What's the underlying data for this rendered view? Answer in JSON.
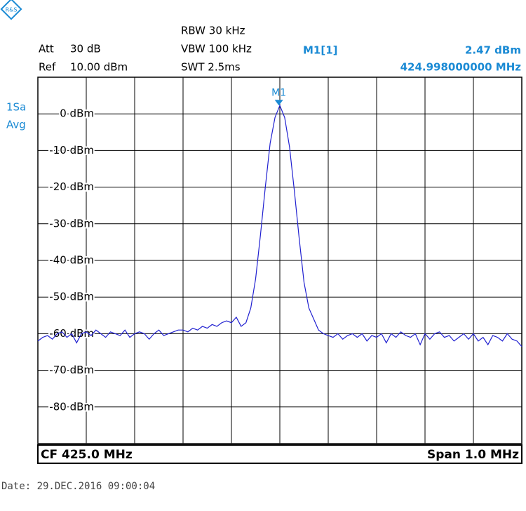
{
  "chart_data": {
    "type": "line",
    "settings": {
      "att_label": "Att",
      "att": "30 dB",
      "ref_label": "Ref",
      "ref": "10.00 dBm",
      "rbw": "RBW 30 kHz",
      "vbw": "VBW 100 kHz",
      "swt": "SWT 2.5ms",
      "trace_mode": [
        "1Sa",
        "Avg"
      ]
    },
    "center": "CF 425.0 MHz",
    "span": "Span 1.0 MHz",
    "date": "Date: 29.DEC.2016  09:00:04",
    "marker": {
      "name": "M1",
      "readout": "M1[1]",
      "x": 424.998,
      "value": 2.47,
      "value_label": "2.47 dBm",
      "x_label": "424.998000000 MHz",
      "color": "#1a8ad4"
    },
    "xlim": [
      424.5,
      425.5
    ],
    "ylim": [
      -90,
      10
    ],
    "yticks": [
      {
        "value": 0,
        "label": "0 dBm"
      },
      {
        "value": -10,
        "label": "-10 dBm"
      },
      {
        "value": -20,
        "label": "-20 dBm"
      },
      {
        "value": -30,
        "label": "-30 dBm"
      },
      {
        "value": -40,
        "label": "-40 dBm"
      },
      {
        "value": -50,
        "label": "-50 dBm"
      },
      {
        "value": -60,
        "label": "-60 dBm"
      },
      {
        "value": -70,
        "label": "-70 dBm"
      },
      {
        "value": -80,
        "label": "-80 dBm"
      }
    ],
    "grid": true,
    "x": [
      424.5,
      424.51,
      424.52,
      424.53,
      424.54,
      424.55,
      424.56,
      424.57,
      424.58,
      424.59,
      424.6,
      424.61,
      424.62,
      424.63,
      424.64,
      424.65,
      424.66,
      424.67,
      424.68,
      424.69,
      424.7,
      424.71,
      424.72,
      424.73,
      424.74,
      424.75,
      424.76,
      424.77,
      424.78,
      424.79,
      424.8,
      424.81,
      424.82,
      424.83,
      424.84,
      424.85,
      424.86,
      424.87,
      424.88,
      424.89,
      424.9,
      424.91,
      424.92,
      424.93,
      424.94,
      424.95,
      424.96,
      424.97,
      424.98,
      424.99,
      425.0,
      425.01,
      425.02,
      425.03,
      425.04,
      425.05,
      425.06,
      425.07,
      425.08,
      425.09,
      425.1,
      425.11,
      425.12,
      425.13,
      425.14,
      425.15,
      425.16,
      425.17,
      425.18,
      425.19,
      425.2,
      425.21,
      425.22,
      425.23,
      425.24,
      425.25,
      425.26,
      425.27,
      425.28,
      425.29,
      425.3,
      425.31,
      425.32,
      425.33,
      425.34,
      425.35,
      425.36,
      425.37,
      425.38,
      425.39,
      425.4,
      425.41,
      425.42,
      425.43,
      425.44,
      425.45,
      425.46,
      425.47,
      425.48,
      425.49,
      425.5
    ],
    "series": [
      {
        "color": "#2020d0",
        "values": [
          -62,
          -61,
          -60.5,
          -61.5,
          -60,
          -59.5,
          -61,
          -60,
          -62.5,
          -60,
          -59.5,
          -60.5,
          -59,
          -60,
          -61,
          -59.5,
          -60,
          -60.5,
          -59,
          -61,
          -60,
          -59.5,
          -60,
          -61.5,
          -60,
          -59,
          -60.5,
          -60,
          -59.5,
          -59,
          -59,
          -59.5,
          -58.5,
          -59,
          -58,
          -58.5,
          -57.5,
          -58,
          -57,
          -56.5,
          -57,
          -55.5,
          -58,
          -57,
          -53,
          -45,
          -33,
          -20,
          -8,
          -1,
          2.3,
          -1,
          -9,
          -21,
          -34,
          -46,
          -53,
          -56,
          -59,
          -60,
          -60.5,
          -61,
          -60,
          -61.5,
          -60.5,
          -60,
          -61,
          -60,
          -62,
          -60.5,
          -61,
          -60,
          -62.5,
          -60,
          -61,
          -59.5,
          -60.5,
          -61,
          -60,
          -63,
          -60,
          -61.5,
          -60,
          -59.5,
          -61,
          -60.5,
          -62,
          -61,
          -60,
          -61.5,
          -60,
          -62,
          -61,
          -63,
          -60.5,
          -61,
          -62,
          -60,
          -61.5,
          -62,
          -63.5
        ]
      }
    ]
  }
}
